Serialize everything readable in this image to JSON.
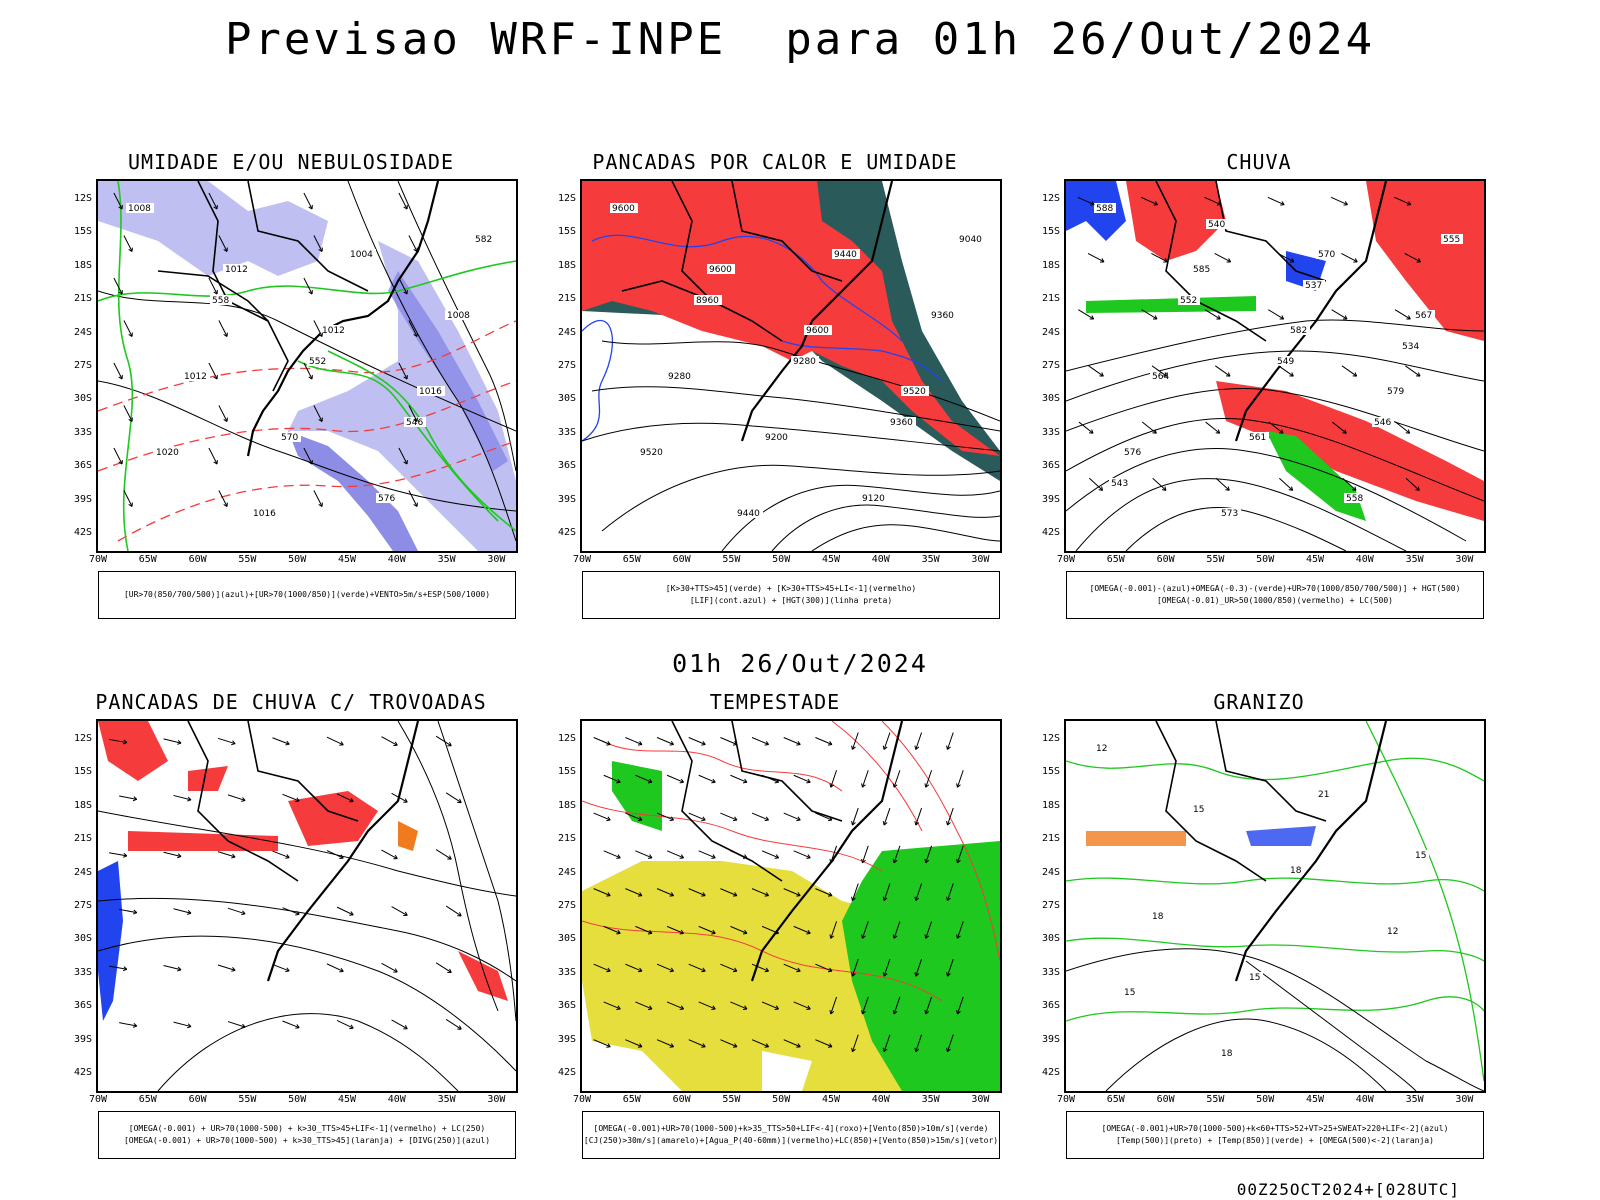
{
  "title": "Previsao WRF-INPE  para 01h 26/Out/2024",
  "subtitle": "01h 26/Out/2024",
  "footer": "00Z25OCT2024+[028UTC]",
  "axes": {
    "lat_labels": [
      "12S",
      "15S",
      "18S",
      "21S",
      "24S",
      "27S",
      "30S",
      "33S",
      "36S",
      "39S",
      "42S"
    ],
    "lon_labels": [
      "70W",
      "65W",
      "60W",
      "55W",
      "50W",
      "45W",
      "40W",
      "35W",
      "30W"
    ]
  },
  "colors": {
    "red": "#f53b3b",
    "green": "#1ec81e",
    "blue": "#2244ee",
    "lavender": "#b8b8f0",
    "yellow": "#e6de3c",
    "teal": "#2b5a5a",
    "orange": "#f07a1e",
    "purple": "#b020c8"
  },
  "panels": [
    {
      "title": "UMIDADE E/OU NEBULOSIDADE",
      "legend": [
        "[UR>70(850/700/500)](azul)+[UR>70(1000/850)](verde)+VENTO>5m/s+ESP(500/1000)"
      ],
      "contour_labels": [
        "1008",
        "1012",
        "1012",
        "1016",
        "1020",
        "1016",
        "1004",
        "1008",
        "1012",
        "570",
        "576",
        "582",
        "558",
        "552",
        "546"
      ]
    },
    {
      "title": "PANCADAS POR CALOR E UMIDADE",
      "legend": [
        "[K>30+TTS>45](verde) + [K>30+TTS>45+LI<-1](vermelho)",
        "[LIF](cont.azul) + [HGT(300)](linha preta)"
      ],
      "contour_labels": [
        "9600",
        "9600",
        "9600",
        "9520",
        "9520",
        "9440",
        "9440",
        "9360",
        "9280",
        "9200",
        "9120",
        "9040",
        "8960",
        "9280",
        "9360"
      ]
    },
    {
      "title": "CHUVA",
      "legend": [
        "[OMEGA(-0.001)-(azul)+OMEGA(-0.3)-(verde)+UR>70(1000/850/700/500)] + HGT(500)",
        "[OMEGA(-0.01)_UR>50(1000/850)(vermelho) + LC(500)"
      ],
      "contour_labels": [
        "588",
        "585",
        "582",
        "579",
        "576",
        "573",
        "570",
        "567",
        "564",
        "561",
        "558",
        "555",
        "552",
        "549",
        "546",
        "543",
        "540",
        "537",
        "534"
      ]
    },
    {
      "title": "PANCADAS DE CHUVA C/ TROVOADAS",
      "legend": [
        "[OMEGA(-0.001) + UR>70(1000-500) + k>30_TTS>45+LIF<-1](vermelho) + LC(250)",
        "[OMEGA(-0.001) + UR>70(1000-500) + k>30_TTS>45](laranja) + [DIVG(250)](azul)"
      ],
      "contour_labels": []
    },
    {
      "title": "TEMPESTADE",
      "legend": [
        "[OMEGA(-0.001)+UR>70(1000-500)+k>35_TTS>50+LIF<-4](roxo)+[Vento(850)>10m/s](verde)",
        "[CJ(250)>30m/s](amarelo)+[Agua_P(40-60mm)](vermelho)+LC(850)+[Vento(850)>15m/s](vetor)"
      ],
      "contour_labels": []
    },
    {
      "title": "GRANIZO",
      "legend": [
        "[OMEGA(-0.001)+UR>70(1000-500)+k<60+TTS>52+VT>25+SWEAT>220+LIF<-2](azul)",
        "[Temp(500)](preto) + [Temp(850)](verde) + [OMEGA(500)<-2](laranja)"
      ],
      "contour_labels": [
        "12",
        "15",
        "18",
        "12",
        "15",
        "18",
        "21",
        "15",
        "18",
        "15"
      ]
    }
  ]
}
